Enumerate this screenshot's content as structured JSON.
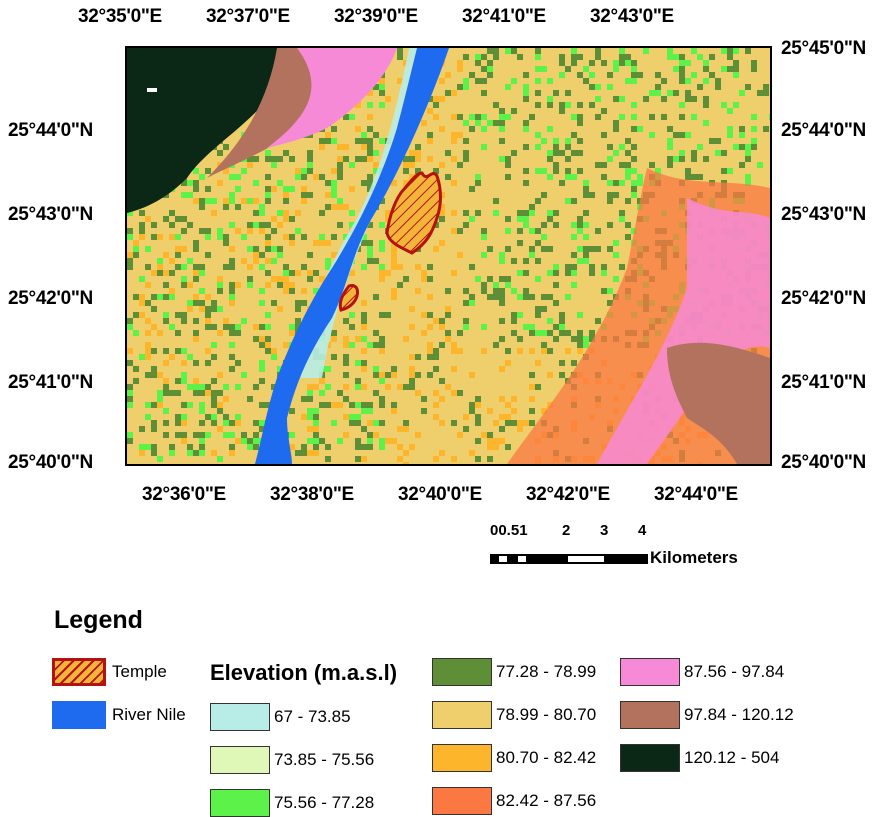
{
  "axes": {
    "top_ticks": [
      "32°35'0\"E",
      "32°37'0\"E",
      "32°39'0\"E",
      "32°41'0\"E",
      "32°43'0\"E"
    ],
    "bottom_ticks": [
      "32°36'0\"E",
      "32°38'0\"E",
      "32°40'0\"E",
      "32°42'0\"E",
      "32°44'0\"E"
    ],
    "left_ticks": [
      "25°44'0\"N",
      "25°43'0\"N",
      "25°42'0\"N",
      "25°41'0\"N",
      "25°40'0\"N"
    ],
    "right_ticks": [
      "25°45'0\"N",
      "25°44'0\"N",
      "25°43'0\"N",
      "25°42'0\"N",
      "25°41'0\"N",
      "25°40'0\"N"
    ]
  },
  "scale_bar": {
    "numbers": [
      "00.51",
      "2",
      "3",
      "4"
    ],
    "unit": "Kilometers"
  },
  "legend": {
    "title": "Legend",
    "temple": {
      "label": "Temple",
      "fill": "#f2b53a",
      "stroke": "#b3120f"
    },
    "river": {
      "label": "River Nile",
      "color": "#1f6bef"
    },
    "elevation_title": "Elevation (m.a.s.l)",
    "classes": [
      {
        "label": "67 - 73.85",
        "color": "#b8ece6"
      },
      {
        "label": "73.85 - 75.56",
        "color": "#dff8b8"
      },
      {
        "label": "75.56 - 77.28",
        "color": "#5cf24a"
      },
      {
        "label": "77.28 - 78.99",
        "color": "#5e8f36"
      },
      {
        "label": "78.99 - 80.70",
        "color": "#efcf6b"
      },
      {
        "label": "80.70 - 82.42",
        "color": "#fdb52b"
      },
      {
        "label": "82.42 - 87.56",
        "color": "#fb7843"
      },
      {
        "label": "87.56 - 97.84",
        "color": "#f68ad6"
      },
      {
        "label": "97.84 - 120.12",
        "color": "#b3725e"
      },
      {
        "label": "120.12 - 504",
        "color": "#0b2716"
      }
    ]
  }
}
